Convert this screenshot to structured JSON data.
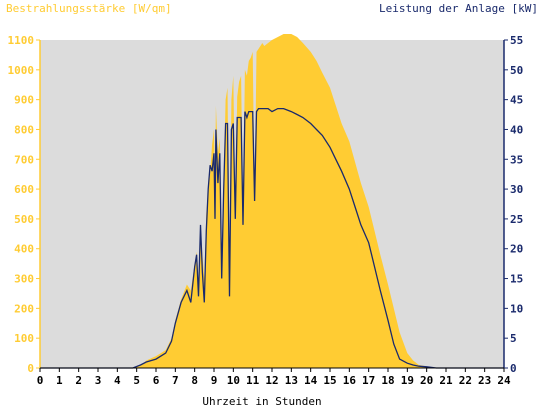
{
  "chart_data": {
    "type": "area",
    "title_left": "Bestrahlungsstärke [W/qm]",
    "title_right": "Leistung der Anlage [kW]",
    "xlabel": "Uhrzeit in Stunden",
    "xlim": [
      0,
      24
    ],
    "x_ticks": [
      "0",
      "1",
      "2",
      "3",
      "4",
      "5",
      "6",
      "7",
      "8",
      "9",
      "10",
      "11",
      "12",
      "13",
      "14",
      "15",
      "16",
      "17",
      "18",
      "19",
      "20",
      "21",
      "22",
      "23",
      "24"
    ],
    "y_left": {
      "lim": [
        0,
        1100
      ],
      "ticks": [
        "0",
        "100",
        "200",
        "300",
        "400",
        "500",
        "600",
        "700",
        "800",
        "900",
        "1000",
        "1100"
      ]
    },
    "y_right": {
      "lim": [
        0,
        55
      ],
      "ticks": [
        "0",
        "5",
        "10",
        "15",
        "20",
        "25",
        "30",
        "35",
        "40",
        "45",
        "50",
        "55"
      ]
    },
    "grid": false,
    "colors": {
      "irradiance": "#ffcc33",
      "power": "#1a2a6c",
      "plot_bg": "#dcdcdc",
      "left_axis": "#ffcc33",
      "right_axis": "#1a2a6c"
    },
    "series": [
      {
        "name": "Bestrahlungsstärke [W/qm]",
        "axis": "left",
        "style": "area",
        "x": [
          0,
          4.8,
          5.2,
          5.5,
          6.0,
          6.5,
          6.8,
          7.0,
          7.3,
          7.6,
          7.8,
          8.0,
          8.1,
          8.2,
          8.3,
          8.4,
          8.5,
          8.6,
          8.7,
          8.8,
          8.9,
          9.0,
          9.05,
          9.1,
          9.2,
          9.3,
          9.4,
          9.5,
          9.6,
          9.7,
          9.8,
          9.9,
          10.0,
          10.1,
          10.2,
          10.3,
          10.4,
          10.5,
          10.6,
          10.7,
          10.8,
          10.9,
          11.0,
          11.1,
          11.2,
          11.3,
          11.4,
          11.5,
          11.6,
          11.8,
          12.0,
          12.3,
          12.6,
          13.0,
          13.3,
          13.6,
          14.0,
          14.3,
          14.6,
          15.0,
          15.3,
          15.6,
          16.0,
          16.3,
          16.6,
          17.0,
          17.3,
          17.6,
          18.0,
          18.3,
          18.6,
          19.0,
          19.3,
          19.6,
          20.0,
          20.5,
          21.0,
          24
        ],
        "values": [
          0,
          0,
          8,
          25,
          40,
          60,
          100,
          160,
          230,
          280,
          260,
          350,
          390,
          280,
          470,
          380,
          300,
          520,
          600,
          650,
          750,
          800,
          600,
          880,
          720,
          770,
          360,
          620,
          900,
          940,
          280,
          900,
          980,
          520,
          910,
          960,
          980,
          500,
          1000,
          980,
          1030,
          1040,
          1060,
          560,
          1060,
          1070,
          1080,
          1090,
          1080,
          1090,
          1100,
          1110,
          1120,
          1120,
          1110,
          1090,
          1060,
          1030,
          990,
          940,
          880,
          820,
          760,
          690,
          620,
          540,
          460,
          380,
          280,
          200,
          120,
          50,
          25,
          10,
          5,
          0,
          0,
          0
        ]
      },
      {
        "name": "Leistung der Anlage [kW]",
        "axis": "right",
        "style": "line",
        "x": [
          0,
          4.8,
          5.2,
          5.5,
          6.0,
          6.5,
          6.8,
          7.0,
          7.3,
          7.6,
          7.8,
          8.0,
          8.1,
          8.2,
          8.3,
          8.4,
          8.5,
          8.6,
          8.7,
          8.8,
          8.9,
          9.0,
          9.05,
          9.1,
          9.2,
          9.3,
          9.4,
          9.5,
          9.6,
          9.7,
          9.8,
          9.9,
          10.0,
          10.1,
          10.2,
          10.3,
          10.4,
          10.5,
          10.6,
          10.7,
          10.8,
          10.9,
          11.0,
          11.1,
          11.2,
          11.3,
          11.4,
          11.5,
          11.6,
          11.8,
          12.0,
          12.3,
          12.6,
          13.0,
          13.3,
          13.6,
          14.0,
          14.3,
          14.6,
          15.0,
          15.3,
          15.6,
          16.0,
          16.3,
          16.6,
          17.0,
          17.3,
          17.6,
          18.0,
          18.3,
          18.6,
          19.0,
          19.3,
          19.6,
          20.0,
          20.5,
          21.0,
          24
        ],
        "values": [
          0,
          0,
          0.5,
          1,
          1.5,
          2.5,
          4.5,
          7.5,
          11,
          13,
          11,
          17,
          19,
          12,
          24,
          16,
          11,
          23,
          30,
          34,
          33,
          36,
          25,
          40,
          31,
          36,
          15,
          30,
          41,
          41,
          12,
          40,
          41,
          25,
          42,
          42,
          42,
          24,
          43,
          42,
          43,
          43,
          43,
          28,
          43,
          43.5,
          43.5,
          43.5,
          43.5,
          43.5,
          43,
          43.5,
          43.5,
          43,
          42.5,
          42,
          41,
          40,
          39,
          37,
          35,
          33,
          30,
          27,
          24,
          21,
          17,
          13,
          8,
          4,
          1.5,
          0.8,
          0.5,
          0.3,
          0.2,
          0,
          0,
          0
        ]
      }
    ]
  }
}
